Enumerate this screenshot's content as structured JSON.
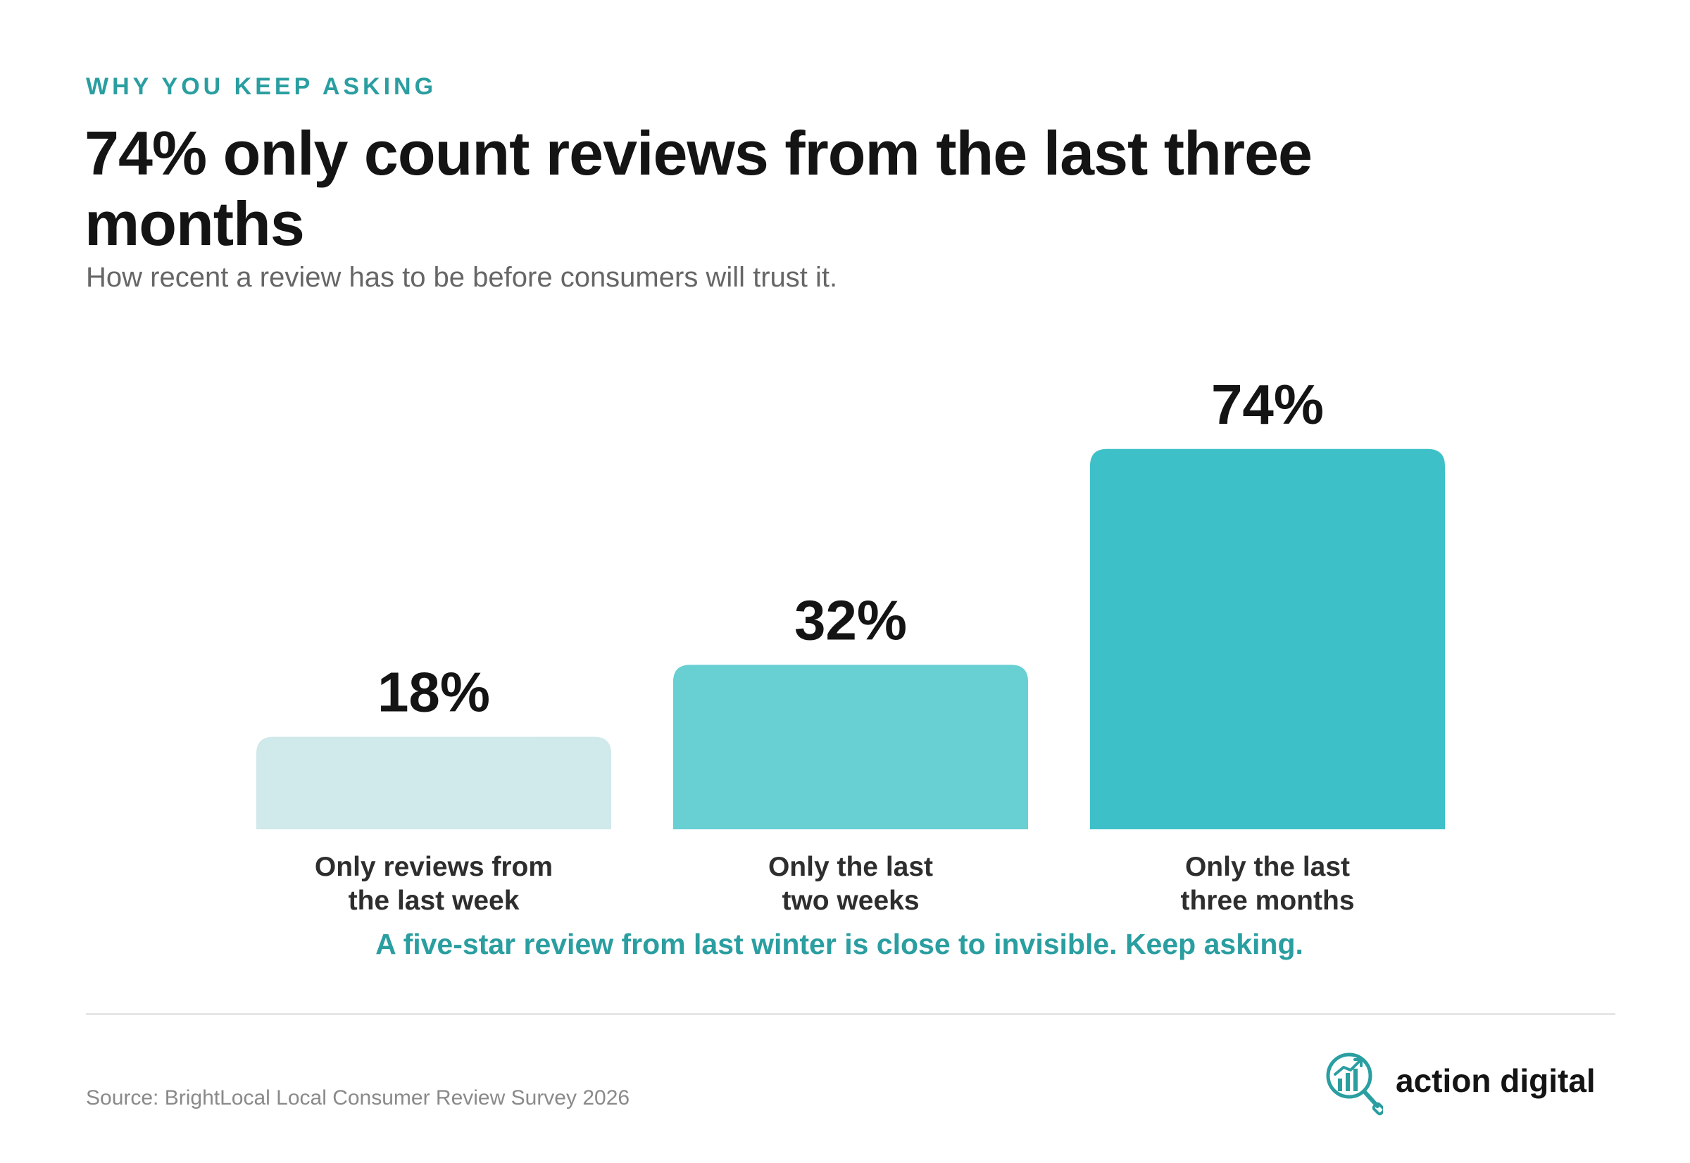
{
  "header": {
    "eyebrow": "WHY YOU KEEP ASKING",
    "title": "74% only count reviews from the last three months",
    "subtitle": "How recent a review has to be before consumers will trust it."
  },
  "chart_data": {
    "type": "bar",
    "title": "74% only count reviews from the last three months",
    "subtitle": "How recent a review has to be before consumers will trust it.",
    "categories": [
      [
        "Only reviews from",
        "the last week"
      ],
      [
        "Only the last",
        "two weeks"
      ],
      [
        "Only the last",
        "three months"
      ]
    ],
    "values": [
      18,
      32,
      74
    ],
    "data_labels": [
      "18%",
      "32%",
      "74%"
    ],
    "unit": "%",
    "ylim": [
      0,
      100
    ],
    "grid": false,
    "legend": "none",
    "bar_colors": [
      "#d0e9ea",
      "#68cfd3",
      "#3ec0c8"
    ]
  },
  "takeaway": "A five-star review from last winter is close to invisible. Keep asking.",
  "footer": {
    "source": "Source: BrightLocal Local Consumer Review Survey 2026",
    "brand_name": "action digital",
    "brand_icon": "magnifier-chart-icon",
    "brand_color": "#2a9ea0"
  }
}
